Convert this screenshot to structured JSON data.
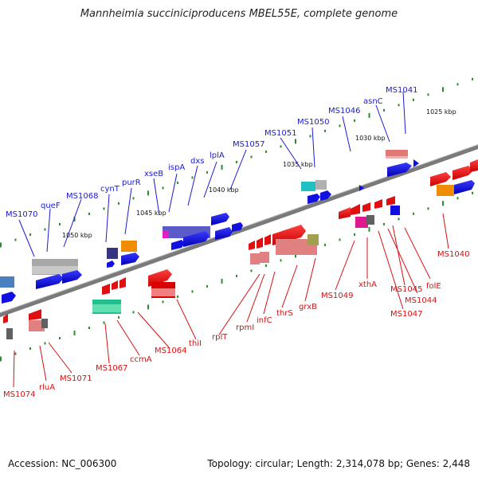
{
  "title": "Mannheimia succiniciproducens MBEL55E, complete genome",
  "footer": {
    "accession": "Accession: NC_006300",
    "summary": "Topology: circular; Length: 2,314,078 bp; Genes: 2,448"
  },
  "colors": {
    "forward_label": "#1a1ad8",
    "reverse_label": "#d81010",
    "backbone": "#777777",
    "tick": "#2e8b2e"
  },
  "kbp_labels": [
    "1025 kbp",
    "1030 kbp",
    "1035 kbp",
    "1040 kbp",
    "1045 kbp",
    "1050 kbp"
  ],
  "forward_genes": [
    "MS1041",
    "asnC",
    "MS1046",
    "MS1050",
    "MS1051",
    "MS1057",
    "lplA",
    "dxs",
    "ispA",
    "xseB",
    "purR",
    "cynT",
    "MS1068",
    "queF",
    "MS1070"
  ],
  "reverse_genes": [
    "MS1040",
    "folE",
    "MS1045",
    "MS1044",
    "MS1047",
    "xthA",
    "MS1049",
    "grxB",
    "thrS",
    "infC",
    "rpmI",
    "rplT",
    "thiI",
    "MS1064",
    "ccmA",
    "MS1067",
    "MS1071",
    "rluA",
    "MS1074"
  ]
}
